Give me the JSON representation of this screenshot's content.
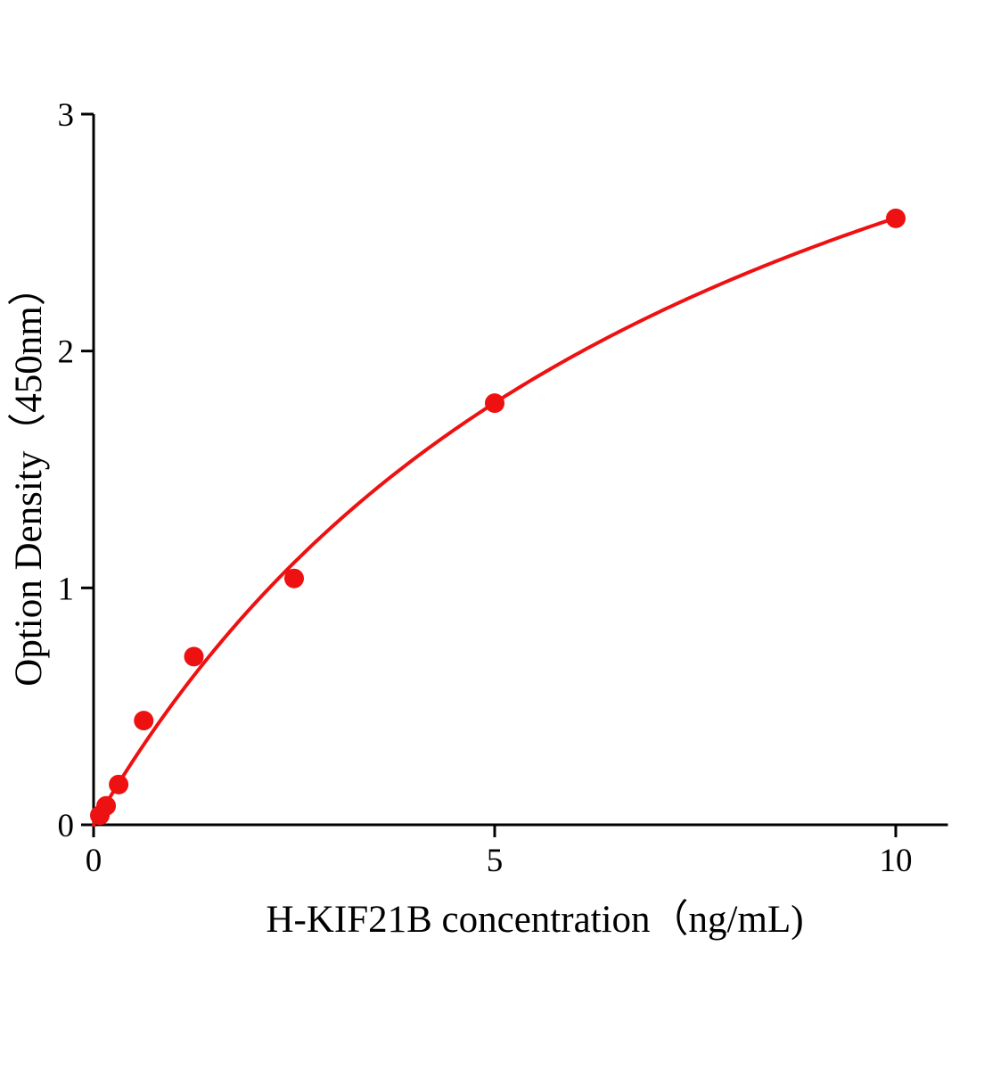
{
  "chart_data": {
    "type": "scatter",
    "title": "",
    "xlabel": "H-KIF21B concentration（ng/mL)",
    "ylabel": "Option Density（450nm）",
    "x": [
      0.078,
      0.156,
      0.3125,
      0.625,
      1.25,
      2.5,
      5,
      10
    ],
    "y": [
      0.04,
      0.08,
      0.17,
      0.44,
      0.71,
      1.04,
      1.78,
      2.56
    ],
    "xlim": [
      0,
      10.65
    ],
    "ylim": [
      0,
      3
    ],
    "x_ticks": [
      0,
      5,
      10
    ],
    "y_ticks": [
      0,
      1,
      2,
      3
    ],
    "grid": false,
    "legend": "none",
    "point_color": "#ee1111",
    "curve_color": "#ee1111",
    "axis_color": "#000000",
    "fit": {
      "type": "michaelis-menten",
      "vmax": 4.56,
      "km": 7.8
    }
  }
}
